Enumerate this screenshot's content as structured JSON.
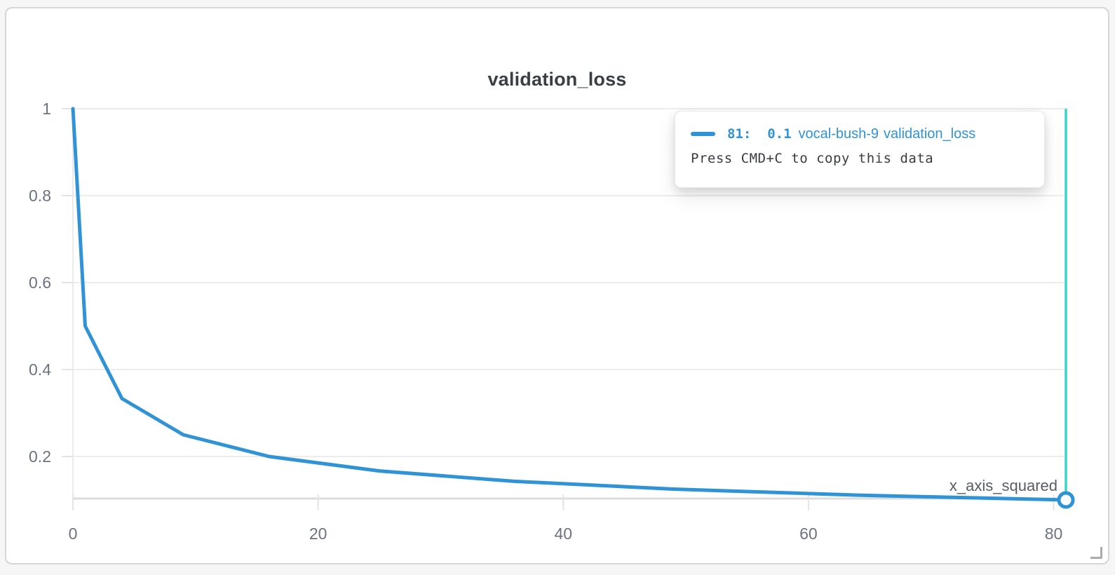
{
  "panel": {
    "title": "validation_loss"
  },
  "chart_data": {
    "type": "line",
    "title": "validation_loss",
    "xlabel": "x_axis_squared",
    "ylabel": "",
    "xlim": [
      0,
      81
    ],
    "ylim": [
      0.1,
      1
    ],
    "grid": "horizontal",
    "legend_position": "tooltip",
    "x_ticks": [
      0,
      20,
      40,
      60,
      80
    ],
    "x_tick_labels": [
      "0",
      "20",
      "40",
      "60",
      "80"
    ],
    "y_ticks": [
      0.2,
      0.4,
      0.6,
      0.8,
      1
    ],
    "y_tick_labels": [
      "0.2",
      "0.4",
      "0.6",
      "0.8",
      "1"
    ],
    "series": [
      {
        "name": "vocal-bush-9",
        "metric": "validation_loss",
        "color": "#3093d5",
        "points": [
          [
            0,
            1
          ],
          [
            1,
            0.5
          ],
          [
            4,
            0.3333
          ],
          [
            9,
            0.25
          ],
          [
            16,
            0.2
          ],
          [
            25,
            0.1667
          ],
          [
            36,
            0.1429
          ],
          [
            49,
            0.125
          ],
          [
            64,
            0.1111
          ],
          [
            81,
            0.1
          ]
        ]
      }
    ],
    "highlight_point": {
      "x": 81,
      "y": 0.1,
      "series": "vocal-bush-9"
    },
    "crosshair_x": 81,
    "crosshair_color": "#38d5cf",
    "grid_color": "#ededed",
    "axis_line_color": "#dcdcdc",
    "tick_color": "#e4e4e4",
    "tick_label_color": "#6b7380",
    "xlabel_color": "#575c66"
  },
  "tooltip": {
    "point_label": "81:  0.1",
    "run_name": "vocal-bush-9",
    "metric_name": "validation_loss",
    "hint": "Press CMD+C to copy this data",
    "accent_color": "#3093d5"
  }
}
